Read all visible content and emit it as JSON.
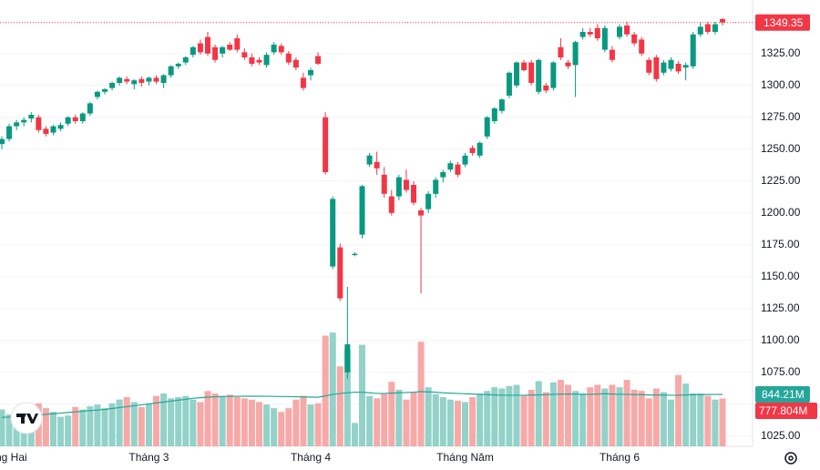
{
  "chart_data": {
    "type": "candlestick",
    "categories": [
      "Tháng Hai",
      null,
      null,
      null,
      null,
      null,
      null,
      null,
      null,
      null,
      null,
      null,
      null,
      null,
      null,
      null,
      null,
      null,
      null,
      null,
      "Tháng 3",
      null,
      null,
      null,
      null,
      null,
      null,
      null,
      null,
      null,
      null,
      null,
      null,
      null,
      null,
      null,
      null,
      null,
      null,
      null,
      null,
      null,
      "Tháng 4",
      null,
      null,
      null,
      null,
      null,
      null,
      null,
      null,
      null,
      null,
      null,
      null,
      null,
      null,
      null,
      null,
      null,
      null,
      null,
      null,
      "Tháng Năm",
      null,
      null,
      null,
      null,
      null,
      null,
      null,
      null,
      null,
      null,
      null,
      null,
      null,
      null,
      null,
      null,
      null,
      null,
      null,
      null,
      "Tháng 6",
      null,
      null,
      null,
      null,
      null,
      null,
      null,
      null,
      null,
      null,
      null,
      null,
      null,
      null
    ],
    "open": [
      1254,
      1258,
      1268,
      1271,
      1274,
      1275,
      1266,
      1263,
      1266,
      1270,
      1275,
      1272,
      1278,
      1291,
      1295,
      1298,
      1302,
      1305,
      1301,
      1305,
      1303,
      1306,
      1302,
      1308,
      1315,
      1318,
      1324,
      1333,
      1338,
      1330,
      1325,
      1332,
      1337,
      1326,
      1322,
      1320,
      1316,
      1326,
      1331,
      1325,
      1320,
      1306,
      1308,
      1323,
      1275,
      1158,
      1173,
      1075,
      1167,
      1183,
      1238,
      1240,
      1230,
      1213,
      1213,
      1226,
      1222,
      1202,
      1203,
      1215,
      1228,
      1234,
      1238,
      1238,
      1251,
      1245,
      1260,
      1272,
      1280,
      1292,
      1300,
      1318,
      1318,
      1295,
      1300,
      1298,
      1330,
      1318,
      1316,
      1338,
      1342,
      1345,
      1328,
      1328,
      1338,
      1347,
      1340,
      1336,
      1320,
      1322,
      1310,
      1313,
      1317,
      1314,
      1315,
      1340,
      1348,
      1342,
      1352
    ],
    "high": [
      1260,
      1270,
      1273,
      1275,
      1279,
      1277,
      1268,
      1269,
      1271,
      1276,
      1277,
      1279,
      1287,
      1296,
      1298,
      1303,
      1307,
      1307,
      1305,
      1307,
      1307,
      1308,
      1309,
      1316,
      1318,
      1323,
      1331,
      1336,
      1342,
      1332,
      1331,
      1334,
      1340,
      1329,
      1325,
      1322,
      1326,
      1334,
      1333,
      1327,
      1322,
      1310,
      1314,
      1326,
      1279,
      1213,
      1176,
      1142,
      1169,
      1222,
      1247,
      1248,
      1236,
      1218,
      1230,
      1234,
      1225,
      1204,
      1217,
      1228,
      1234,
      1241,
      1240,
      1247,
      1253,
      1256,
      1276,
      1283,
      1290,
      1311,
      1319,
      1320,
      1320,
      1321,
      1302,
      1319,
      1337,
      1320,
      1335,
      1345,
      1345,
      1348,
      1347,
      1331,
      1348,
      1350,
      1342,
      1338,
      1322,
      1324,
      1320,
      1322,
      1319,
      1318,
      1342,
      1350,
      1350,
      1350,
      1353
    ],
    "low": [
      1250,
      1256,
      1265,
      1268,
      1271,
      1263,
      1260,
      1261,
      1264,
      1268,
      1270,
      1270,
      1276,
      1289,
      1293,
      1296,
      1300,
      1301,
      1297,
      1299,
      1300,
      1301,
      1298,
      1306,
      1313,
      1316,
      1322,
      1324,
      1323,
      1318,
      1322,
      1327,
      1326,
      1320,
      1315,
      1316,
      1314,
      1324,
      1324,
      1316,
      1312,
      1296,
      1304,
      1316,
      1230,
      1156,
      1131,
      1070,
      1166,
      1180,
      1236,
      1230,
      1212,
      1198,
      1210,
      1216,
      1206,
      1137,
      1200,
      1212,
      1224,
      1232,
      1228,
      1236,
      1245,
      1243,
      1258,
      1270,
      1278,
      1290,
      1298,
      1311,
      1300,
      1293,
      1294,
      1296,
      1320,
      1313,
      1291,
      1336,
      1338,
      1335,
      1326,
      1318,
      1336,
      1338,
      1331,
      1323,
      1308,
      1303,
      1308,
      1311,
      1309,
      1304,
      1313,
      1338,
      1340,
      1340,
      1347
    ],
    "close": [
      1258,
      1268,
      1271,
      1273,
      1277,
      1265,
      1262,
      1268,
      1269,
      1275,
      1272,
      1278,
      1286,
      1295,
      1297,
      1302,
      1306,
      1303,
      1304,
      1302,
      1306,
      1303,
      1308,
      1315,
      1317,
      1322,
      1330,
      1326,
      1325,
      1320,
      1330,
      1328,
      1328,
      1322,
      1317,
      1318,
      1324,
      1332,
      1326,
      1318,
      1314,
      1298,
      1312,
      1317,
      1232,
      1211,
      1133,
      1097,
      1168,
      1221,
      1245,
      1235,
      1215,
      1200,
      1228,
      1218,
      1208,
      1198,
      1215,
      1226,
      1232,
      1239,
      1230,
      1245,
      1247,
      1255,
      1275,
      1282,
      1289,
      1310,
      1318,
      1312,
      1302,
      1320,
      1296,
      1318,
      1322,
      1315,
      1334,
      1342,
      1340,
      1337,
      1345,
      1320,
      1346,
      1340,
      1333,
      1325,
      1310,
      1305,
      1318,
      1320,
      1311,
      1316,
      1340,
      1346,
      1342,
      1348,
      1349.35
    ],
    "volume": [
      600,
      520,
      480,
      560,
      450,
      700,
      620,
      560,
      480,
      500,
      640,
      600,
      650,
      680,
      620,
      700,
      760,
      800,
      720,
      640,
      700,
      820,
      860,
      780,
      800,
      820,
      760,
      720,
      900,
      860,
      820,
      840,
      800,
      780,
      760,
      720,
      680,
      620,
      560,
      620,
      760,
      820,
      680,
      700,
      1800,
      1850,
      1300,
      1580,
      380,
      1650,
      820,
      780,
      850,
      1050,
      920,
      760,
      880,
      1700,
      960,
      850,
      800,
      760,
      740,
      720,
      800,
      860,
      900,
      960,
      940,
      980,
      1000,
      820,
      920,
      1060,
      880,
      1040,
      1080,
      1000,
      900,
      860,
      960,
      1000,
      940,
      1000,
      960,
      1080,
      920,
      900,
      780,
      940,
      880,
      760,
      1160,
      1020,
      860,
      860,
      820,
      760,
      777.804
    ],
    "volume_ma": [
      470,
      475,
      480,
      490,
      500,
      510,
      520,
      530,
      540,
      550,
      560,
      570,
      580,
      590,
      600,
      615,
      630,
      645,
      660,
      675,
      690,
      705,
      720,
      735,
      750,
      765,
      780,
      790,
      800,
      805,
      810,
      812,
      814,
      815,
      815,
      815,
      814,
      812,
      810,
      808,
      806,
      804,
      800,
      798,
      820,
      845,
      860,
      870,
      880,
      880,
      870,
      860,
      860,
      865,
      870,
      875,
      880,
      890,
      885,
      880,
      870,
      865,
      860,
      855,
      850,
      845,
      840,
      835,
      830,
      830,
      830,
      830,
      835,
      835,
      840,
      845,
      850,
      850,
      850,
      845,
      845,
      850,
      855,
      850,
      845,
      845,
      840,
      840,
      835,
      835,
      835,
      830,
      830,
      835,
      840,
      840,
      842,
      843,
      844.21
    ],
    "last_volume_label": "777.804M",
    "volume_ma_label": "844.21M",
    "up_color": "#089981",
    "down_color": "#f23645",
    "up_volume_color": "#92d2c8",
    "down_volume_color": "#f7a9a7",
    "volume_ma_color": "#26a69a",
    "ylim": [
      1017,
      1367
    ],
    "yticks": [
      {
        "value": 1025,
        "label": "1025.00"
      },
      {
        "value": 1050,
        "label": "1050.00"
      },
      {
        "value": 1075,
        "label": "1075.00"
      },
      {
        "value": 1100,
        "label": "1100.00"
      },
      {
        "value": 1125,
        "label": "1125.00"
      },
      {
        "value": 1150,
        "label": "1150.00"
      },
      {
        "value": 1175,
        "label": "1175.00"
      },
      {
        "value": 1200,
        "label": "1200.00"
      },
      {
        "value": 1225,
        "label": "1225.00"
      },
      {
        "value": 1250,
        "label": "1250.00"
      },
      {
        "value": 1275,
        "label": "1275.00"
      },
      {
        "value": 1300,
        "label": "1300.00"
      },
      {
        "value": 1325,
        "label": "1325.00"
      }
    ],
    "grid": true
  }
}
